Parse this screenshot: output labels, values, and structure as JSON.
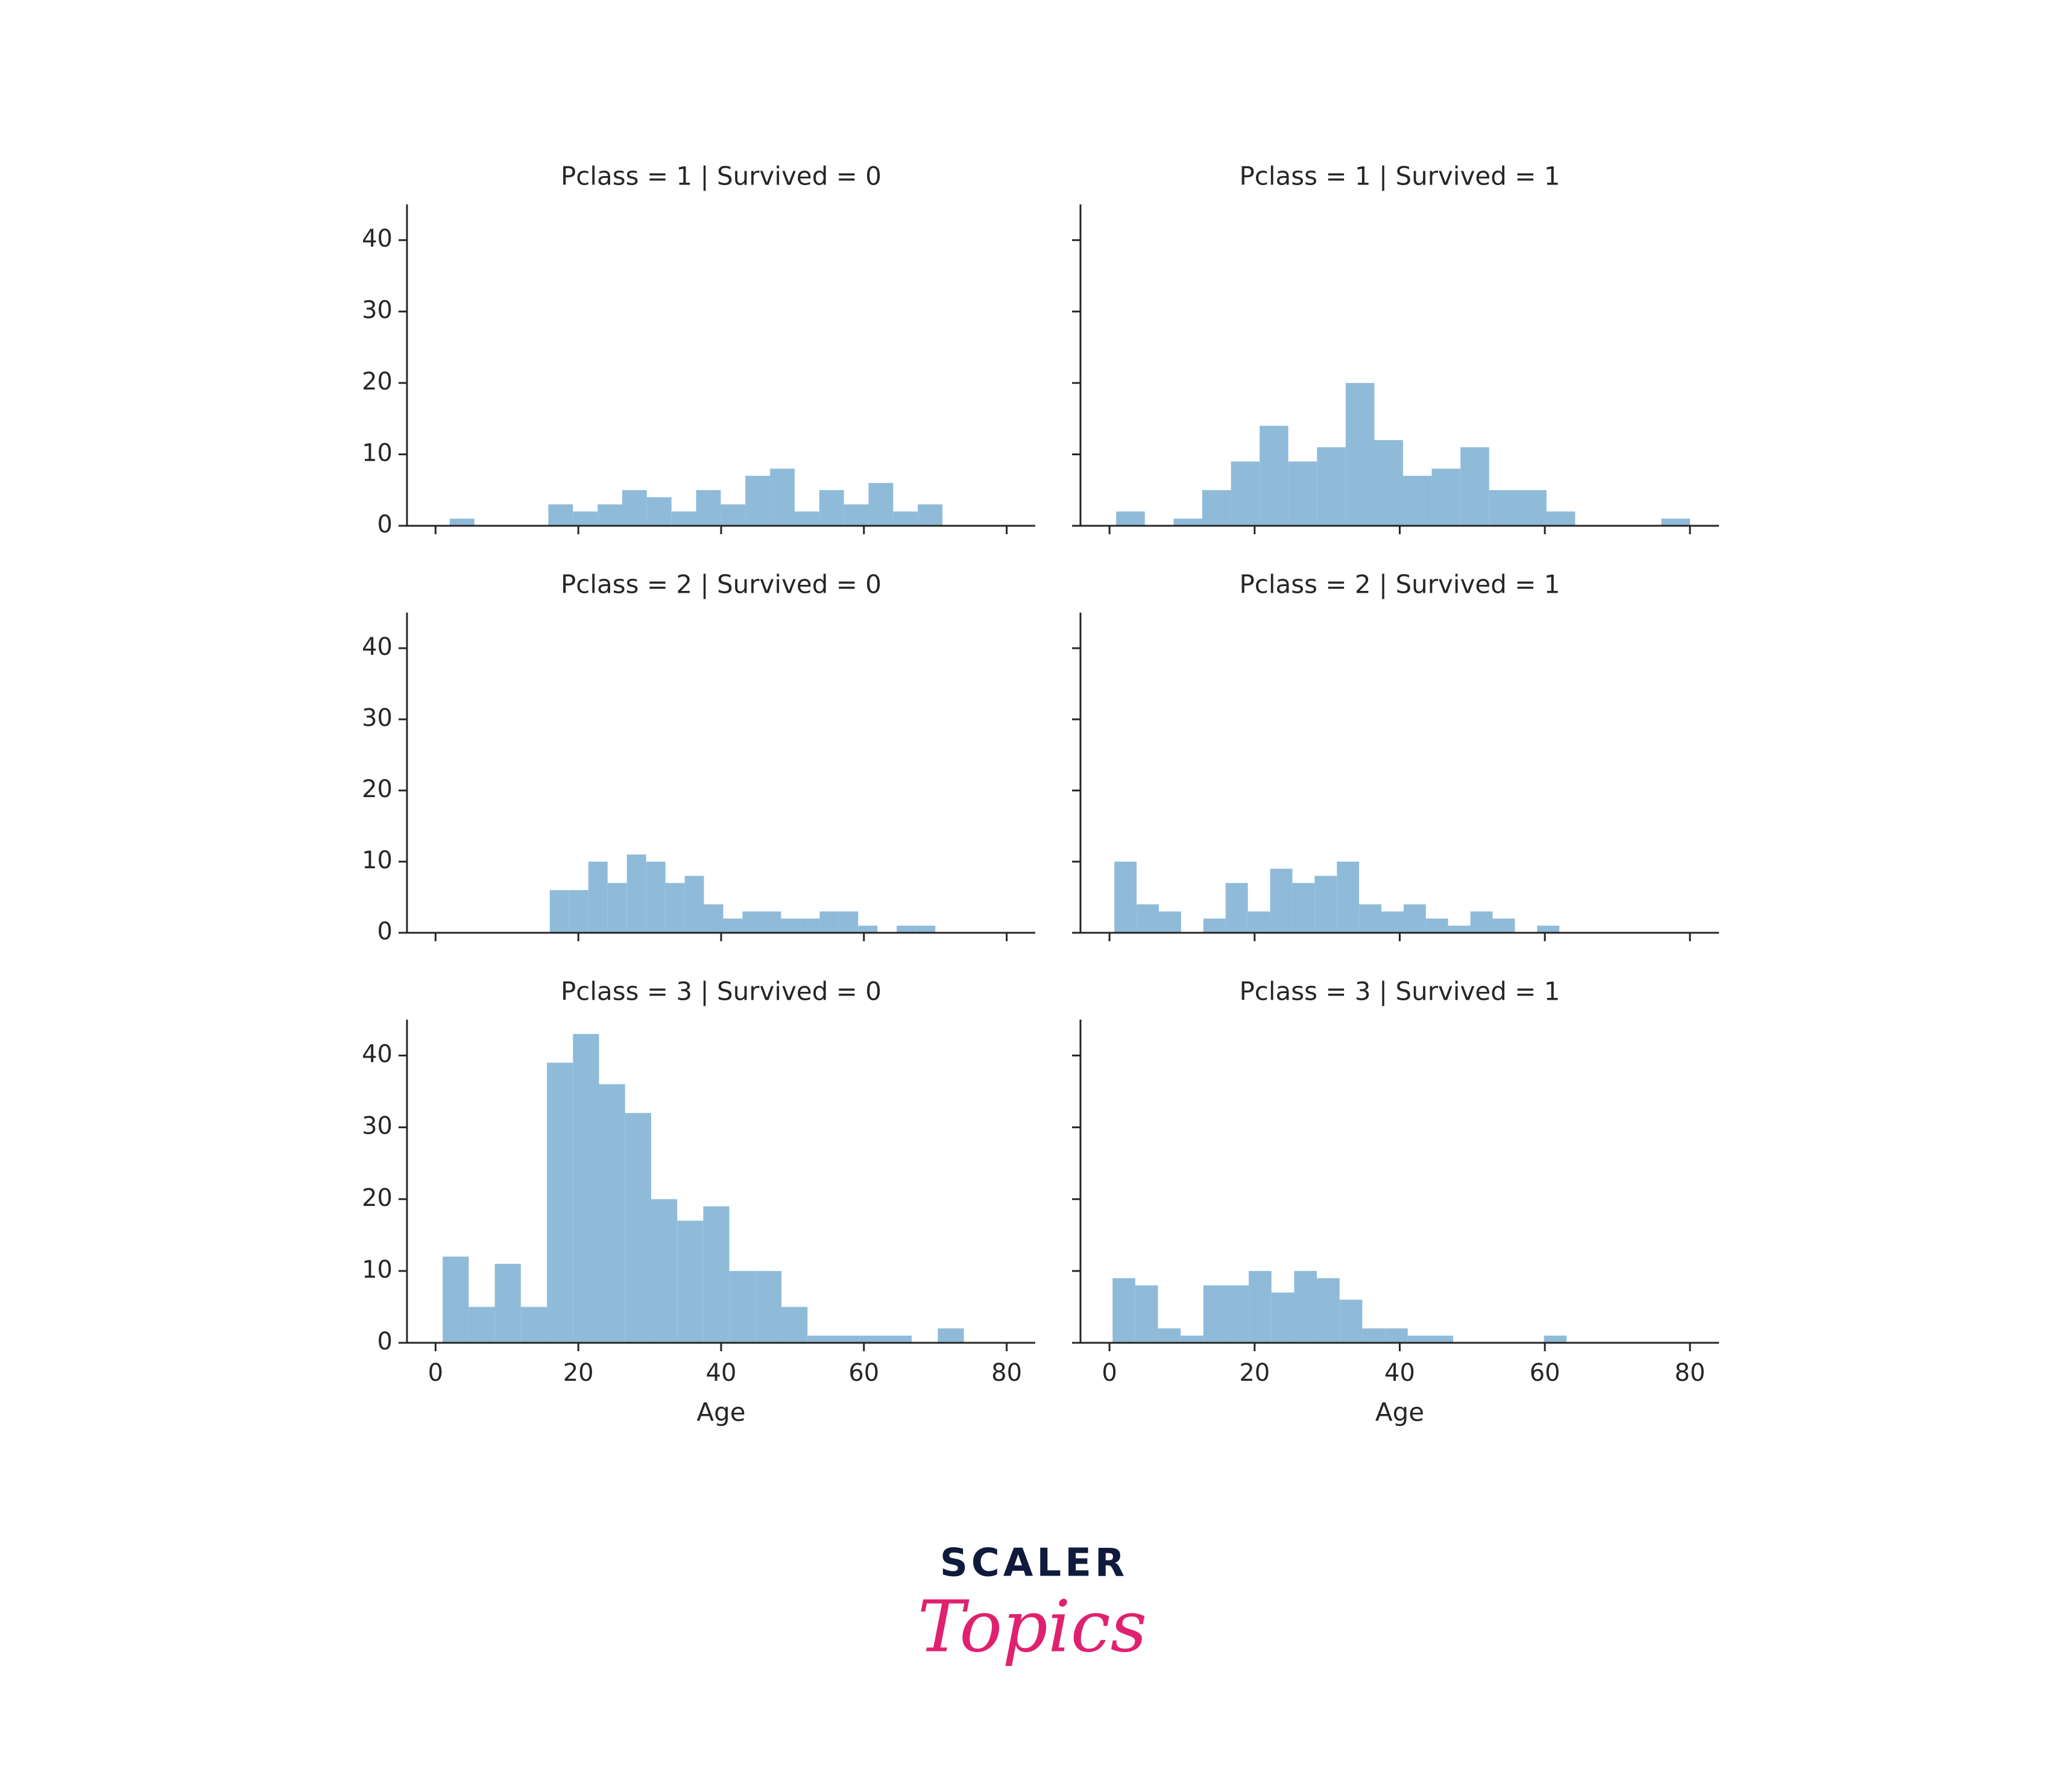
{
  "chart_data": [
    {
      "type": "histogram",
      "title": "Pclass = 1 | Survived = 0",
      "color": "#8fbbd9",
      "bins": [
        2,
        5.45,
        8.9,
        12.35,
        15.8,
        19.25,
        22.7,
        26.15,
        29.6,
        33.05,
        36.5,
        39.95,
        43.4,
        46.85,
        50.3,
        53.75,
        57.2,
        60.65,
        64.1,
        67.55,
        71
      ],
      "counts": [
        1,
        0,
        0,
        0,
        3,
        2,
        3,
        5,
        4,
        2,
        5,
        3,
        7,
        8,
        2,
        5,
        3,
        6,
        2,
        3
      ],
      "xlim": [
        -4,
        84
      ],
      "ylim": [
        0,
        45
      ],
      "xticks": [
        0,
        20,
        40,
        60,
        80
      ],
      "yticks": [
        0,
        10,
        20,
        30,
        40
      ]
    },
    {
      "type": "histogram",
      "title": "Pclass = 1 | Survived = 1",
      "color": "#8fbbd9",
      "bins": [
        0.92,
        4.87,
        8.83,
        12.78,
        16.74,
        20.69,
        24.64,
        28.6,
        32.55,
        36.51,
        40.46,
        44.41,
        48.37,
        52.32,
        56.28,
        60.23,
        64.18,
        68.14,
        72.09,
        76.05,
        80
      ],
      "counts": [
        2,
        0,
        1,
        5,
        9,
        14,
        9,
        11,
        20,
        12,
        7,
        8,
        11,
        5,
        5,
        2,
        0,
        0,
        0,
        1
      ],
      "xlim": [
        -4,
        84
      ],
      "ylim": [
        0,
        45
      ],
      "xticks": [
        0,
        20,
        40,
        60,
        80
      ],
      "yticks": [
        0,
        10,
        20,
        30,
        40
      ]
    },
    {
      "type": "histogram",
      "title": "Pclass = 2 | Survived = 0",
      "color": "#8fbbd9",
      "bins": [
        16,
        18.7,
        21.4,
        24.1,
        26.8,
        29.5,
        32.2,
        34.9,
        37.6,
        40.3,
        43,
        45.7,
        48.4,
        51.1,
        53.8,
        56.5,
        59.2,
        61.9,
        64.6,
        67.3,
        70
      ],
      "counts": [
        6,
        6,
        10,
        7,
        11,
        10,
        7,
        8,
        4,
        2,
        3,
        3,
        2,
        2,
        3,
        3,
        1,
        0,
        1,
        1
      ],
      "xlim": [
        -4,
        84
      ],
      "ylim": [
        0,
        45
      ],
      "xticks": [
        0,
        20,
        40,
        60,
        80
      ],
      "yticks": [
        0,
        10,
        20,
        30,
        40
      ]
    },
    {
      "type": "histogram",
      "title": "Pclass = 2 | Survived = 1",
      "color": "#8fbbd9",
      "bins": [
        0.67,
        3.74,
        6.8,
        9.87,
        12.94,
        16,
        19.07,
        22.14,
        25.2,
        28.27,
        31.34,
        34.4,
        37.47,
        40.54,
        43.6,
        46.67,
        49.74,
        52.8,
        55.87,
        58.94,
        62
      ],
      "counts": [
        10,
        4,
        3,
        0,
        2,
        7,
        3,
        9,
        7,
        8,
        10,
        4,
        3,
        4,
        2,
        1,
        3,
        2,
        0,
        1
      ],
      "xlim": [
        -4,
        84
      ],
      "ylim": [
        0,
        45
      ],
      "xticks": [
        0,
        20,
        40,
        60,
        80
      ],
      "yticks": [
        0,
        10,
        20,
        30,
        40
      ]
    },
    {
      "type": "histogram",
      "title": "Pclass = 3 | Survived = 0",
      "color": "#8fbbd9",
      "xlabel": "Age",
      "bins": [
        1,
        4.65,
        8.3,
        11.95,
        15.6,
        19.25,
        22.9,
        26.55,
        30.2,
        33.85,
        37.5,
        41.15,
        44.8,
        48.45,
        52.1,
        55.75,
        59.4,
        63.05,
        66.7,
        70.35,
        74
      ],
      "counts": [
        12,
        5,
        11,
        5,
        39,
        43,
        36,
        32,
        20,
        17,
        19,
        10,
        10,
        5,
        1,
        1,
        1,
        1,
        0,
        2
      ],
      "xlim": [
        -4,
        84
      ],
      "ylim": [
        0,
        45
      ],
      "xticks": [
        0,
        20,
        40,
        60,
        80
      ],
      "yticks": [
        0,
        10,
        20,
        30,
        40
      ]
    },
    {
      "type": "histogram",
      "title": "Pclass = 3 | Survived = 1",
      "color": "#8fbbd9",
      "xlabel": "Age",
      "bins": [
        0.42,
        3.55,
        6.68,
        9.81,
        12.94,
        16.07,
        19.19,
        22.32,
        25.45,
        28.58,
        31.71,
        34.84,
        37.97,
        41.1,
        44.23,
        47.36,
        50.49,
        53.62,
        56.74,
        59.87,
        63
      ],
      "counts": [
        9,
        8,
        2,
        1,
        8,
        8,
        10,
        7,
        10,
        9,
        6,
        2,
        2,
        1,
        1,
        0,
        0,
        0,
        0,
        1
      ],
      "xlim": [
        -4,
        84
      ],
      "ylim": [
        0,
        45
      ],
      "xticks": [
        0,
        20,
        40,
        60,
        80
      ],
      "yticks": [
        0,
        10,
        20,
        30,
        40
      ]
    }
  ],
  "logo": {
    "line1": "SCALER",
    "line2": "Topics"
  }
}
